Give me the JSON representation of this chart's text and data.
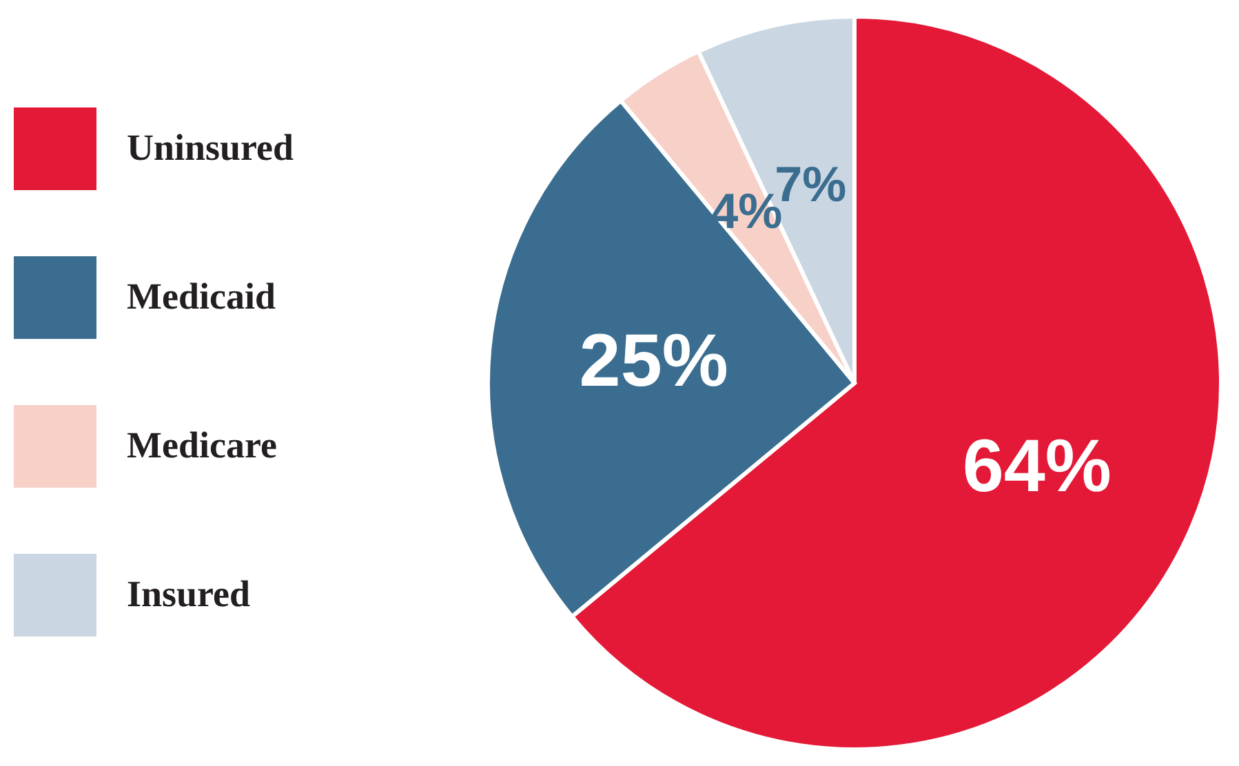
{
  "chart_data": {
    "type": "pie",
    "categories": [
      "Uninsured",
      "Medicaid",
      "Medicare",
      "Insured"
    ],
    "values": [
      64,
      25,
      4,
      7
    ],
    "colors": [
      "#e31937",
      "#3a6d8f",
      "#f7d1c8",
      "#cad6e2"
    ],
    "value_labels": [
      "64%",
      "25%",
      "4%",
      "7%"
    ],
    "legend": "left"
  }
}
